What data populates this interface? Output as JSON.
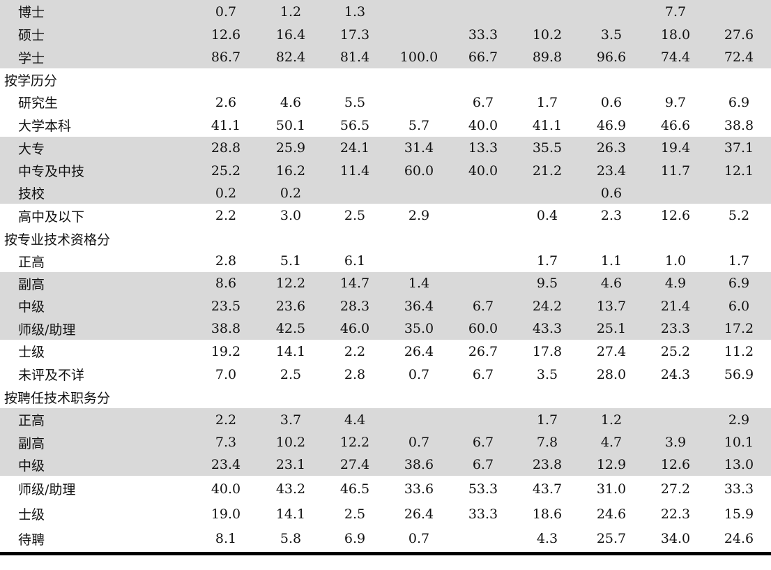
{
  "rows": [
    {
      "label": "博士",
      "values": [
        "0.7",
        "1.2",
        "1.3",
        "",
        "",
        "",
        "",
        "7.7",
        ""
      ]
    },
    {
      "label": "硕士",
      "values": [
        "12.6",
        "16.4",
        "17.3",
        "",
        "33.3",
        "10.2",
        "3.5",
        "18.0",
        "27.6"
      ]
    },
    {
      "label": "学士",
      "values": [
        "86.7",
        "82.4",
        "81.4",
        "100.0",
        "66.7",
        "89.8",
        "96.6",
        "74.4",
        "72.4"
      ]
    },
    {
      "label": "按学历分",
      "section": true,
      "values": []
    },
    {
      "label": "研究生",
      "values": [
        "2.6",
        "4.6",
        "5.5",
        "",
        "6.7",
        "1.7",
        "0.6",
        "9.7",
        "6.9"
      ]
    },
    {
      "label": "大学本科",
      "values": [
        "41.1",
        "50.1",
        "56.5",
        "5.7",
        "40.0",
        "41.1",
        "46.9",
        "46.6",
        "38.8"
      ]
    },
    {
      "label": "大专",
      "values": [
        "28.8",
        "25.9",
        "24.1",
        "31.4",
        "13.3",
        "35.5",
        "26.3",
        "19.4",
        "37.1"
      ]
    },
    {
      "label": "中专及中技",
      "values": [
        "25.2",
        "16.2",
        "11.4",
        "60.0",
        "40.0",
        "21.2",
        "23.4",
        "11.7",
        "12.1"
      ]
    },
    {
      "label": "技校",
      "values": [
        "0.2",
        "0.2",
        "",
        "",
        "",
        "",
        "0.6",
        "",
        ""
      ]
    },
    {
      "label": "高中及以下",
      "values": [
        "2.2",
        "3.0",
        "2.5",
        "2.9",
        "",
        "0.4",
        "2.3",
        "12.6",
        "5.2"
      ]
    },
    {
      "label": "按专业技术资格分",
      "section": true,
      "values": []
    },
    {
      "label": "正高",
      "values": [
        "2.8",
        "5.1",
        "6.1",
        "",
        "",
        "1.7",
        "1.1",
        "1.0",
        "1.7"
      ]
    },
    {
      "label": "副高",
      "values": [
        "8.6",
        "12.2",
        "14.7",
        "1.4",
        "",
        "9.5",
        "4.6",
        "4.9",
        "6.9"
      ]
    },
    {
      "label": "中级",
      "values": [
        "23.5",
        "23.6",
        "28.3",
        "36.4",
        "6.7",
        "24.2",
        "13.7",
        "21.4",
        "6.0"
      ]
    },
    {
      "label": "师级/助理",
      "values": [
        "38.8",
        "42.5",
        "46.0",
        "35.0",
        "60.0",
        "43.3",
        "25.1",
        "23.3",
        "17.2"
      ]
    },
    {
      "label": "士级",
      "values": [
        "19.2",
        "14.1",
        "2.2",
        "26.4",
        "26.7",
        "17.8",
        "27.4",
        "25.2",
        "11.2"
      ]
    },
    {
      "label": "未评及不详",
      "values": [
        "7.0",
        "2.5",
        "2.8",
        "0.7",
        "6.7",
        "3.5",
        "28.0",
        "24.3",
        "56.9"
      ]
    },
    {
      "label": "按聘任技术职务分",
      "section": true,
      "values": []
    },
    {
      "label": "正高",
      "values": [
        "2.2",
        "3.7",
        "4.4",
        "",
        "",
        "1.7",
        "1.2",
        "",
        "2.9"
      ]
    },
    {
      "label": "副高",
      "values": [
        "7.3",
        "10.2",
        "12.2",
        "0.7",
        "6.7",
        "7.8",
        "4.7",
        "3.9",
        "10.1"
      ]
    },
    {
      "label": "中级",
      "values": [
        "23.4",
        "23.1",
        "27.4",
        "38.6",
        "6.7",
        "23.8",
        "12.9",
        "12.6",
        "13.0"
      ]
    },
    {
      "label": "师级/助理",
      "values": [
        "40.0",
        "43.2",
        "46.5",
        "33.6",
        "53.3",
        "43.7",
        "31.0",
        "27.2",
        "33.3"
      ]
    },
    {
      "label": "士级",
      "values": [
        "19.0",
        "14.1",
        "2.5",
        "26.4",
        "33.3",
        "18.6",
        "24.6",
        "22.3",
        "15.9"
      ]
    },
    {
      "label": "待聘",
      "values": [
        "8.1",
        "5.8",
        "6.9",
        "0.7",
        "",
        "4.3",
        "25.7",
        "34.0",
        "24.6"
      ]
    }
  ]
}
